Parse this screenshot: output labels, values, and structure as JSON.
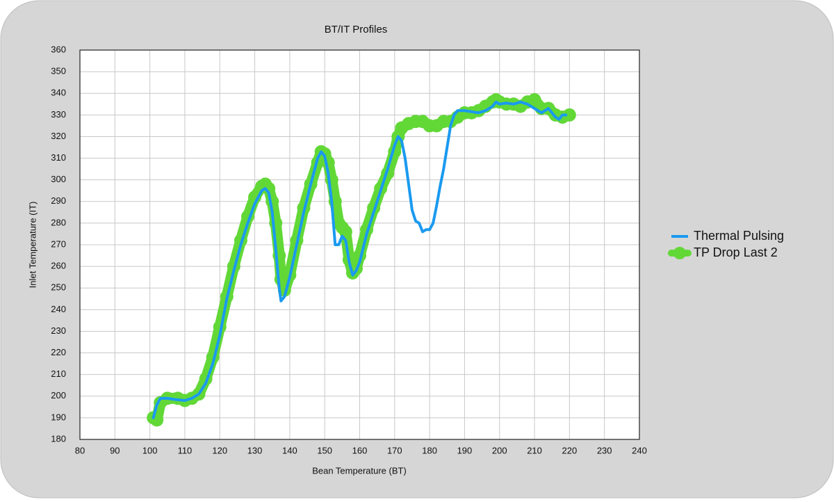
{
  "chart_data": {
    "type": "line",
    "title": "BT/IT Profiles",
    "x_label": "Bean Temperature (BT)",
    "y_label": "Inlet Temperature (IT)",
    "xlim": [
      80,
      240
    ],
    "xticks": [
      80,
      90,
      100,
      110,
      120,
      130,
      140,
      150,
      160,
      170,
      180,
      190,
      200,
      210,
      220,
      230,
      240
    ],
    "ylim": [
      180,
      360
    ],
    "yticks": [
      180,
      190,
      200,
      210,
      220,
      230,
      240,
      250,
      260,
      270,
      280,
      290,
      300,
      310,
      320,
      330,
      340,
      350,
      360
    ],
    "grid": true,
    "legend": "right",
    "series": [
      {
        "name": "Thermal Pulsing",
        "color": "#1a9af0",
        "markers": false,
        "x": [
          101,
          102,
          103,
          105,
          107,
          110,
          112,
          114,
          116,
          118,
          120,
          122,
          124,
          126,
          128,
          130,
          132,
          133,
          134,
          135,
          136,
          137,
          137.5,
          138.5,
          140,
          142,
          144,
          146,
          148,
          149,
          150,
          151,
          152,
          153,
          154,
          155,
          156,
          157,
          158,
          159,
          160,
          162,
          164,
          166,
          168,
          170,
          171,
          172,
          173,
          174,
          175,
          176,
          177,
          178,
          179,
          180,
          181,
          182,
          183,
          184,
          185,
          186,
          187,
          188,
          190,
          192,
          194,
          196,
          198,
          199,
          200,
          202,
          204,
          206,
          208,
          210,
          211,
          212,
          213,
          214,
          215,
          216,
          217,
          218,
          219
        ],
        "values": [
          190,
          196,
          199,
          199,
          198.5,
          198,
          199,
          201,
          206,
          215,
          228,
          245,
          258,
          270,
          280,
          289,
          295,
          296,
          294,
          285,
          268,
          250,
          244,
          246,
          255,
          270,
          285,
          298,
          310,
          313,
          311,
          303,
          290,
          270,
          270,
          274,
          272,
          262,
          256,
          258,
          262,
          275,
          285,
          295,
          305,
          316,
          320,
          318,
          310,
          298,
          286,
          281,
          280,
          276,
          277,
          277,
          280,
          288,
          297,
          305,
          315,
          325,
          330,
          332,
          332,
          331.5,
          331,
          332,
          334,
          336,
          335,
          335.5,
          335,
          336,
          335,
          333,
          332,
          331,
          332,
          333,
          331,
          329,
          328,
          330,
          330
        ]
      },
      {
        "name": "TP Drop Last 2",
        "color": "#62d837",
        "markers": true,
        "x": [
          101,
          102,
          103,
          105,
          108,
          110,
          112,
          114,
          116,
          118,
          120,
          122,
          124,
          126,
          128,
          130,
          132,
          133,
          134,
          135,
          136,
          137,
          137.5,
          138.5,
          140,
          142,
          144,
          146,
          148,
          149,
          150,
          151,
          152,
          153,
          154,
          155,
          156,
          157,
          158,
          159,
          160,
          162,
          164,
          166,
          168,
          170,
          171,
          172,
          174,
          176,
          178,
          180,
          182,
          184,
          186,
          188,
          190,
          192,
          194,
          196,
          198,
          199,
          200,
          202,
          204,
          206,
          208,
          210,
          212,
          214,
          216,
          218,
          220
        ],
        "values": [
          190,
          189,
          197,
          199,
          199,
          198,
          199,
          201,
          208,
          218,
          232,
          246,
          260,
          272,
          283,
          292,
          297,
          298,
          296,
          290,
          280,
          265,
          254,
          249,
          256,
          272,
          287,
          298,
          308,
          313,
          312,
          308,
          300,
          290,
          280,
          278,
          276,
          263,
          257,
          259,
          265,
          277,
          287,
          296,
          303,
          313,
          320,
          324,
          326,
          327,
          327,
          325,
          325,
          327,
          327,
          329,
          331,
          331,
          332,
          334,
          336,
          337,
          336,
          335,
          335,
          334,
          336,
          337,
          333,
          333,
          330,
          329,
          330
        ]
      }
    ]
  }
}
